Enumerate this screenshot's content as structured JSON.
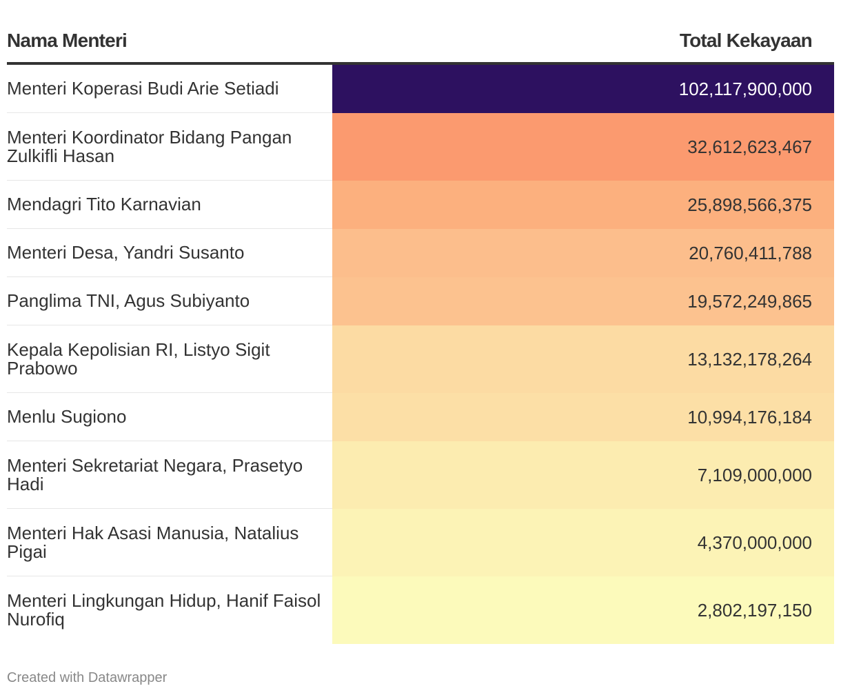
{
  "chart_data": {
    "type": "table",
    "columns": [
      "Nama Menteri",
      "Total Kekayaan"
    ],
    "rows": [
      {
        "name": "Menteri Koperasi Budi Arie Setiadi",
        "value": 102117900000,
        "display": "102,117,900,000",
        "color": "#2d1160",
        "text_color": "#ffffff"
      },
      {
        "name": "Menteri Koordinator Bidang Pangan Zulkifli Hasan",
        "value": 32612623467,
        "display": "32,612,623,467",
        "color": "#fb9a6f",
        "text_color": "#333333"
      },
      {
        "name": "Mendagri Tito Karnavian",
        "value": 25898566375,
        "display": "25,898,566,375",
        "color": "#fcb07e",
        "text_color": "#333333"
      },
      {
        "name": "Menteri Desa, Yandri Susanto",
        "value": 20760411788,
        "display": "20,760,411,788",
        "color": "#fcbe8c",
        "text_color": "#333333"
      },
      {
        "name": "Panglima TNI, Agus Subiyanto",
        "value": 19572249865,
        "display": "19,572,249,865",
        "color": "#fcc28f",
        "text_color": "#333333"
      },
      {
        "name": "Kepala Kepolisian RI, Listyo Sigit Prabowo",
        "value": 13132178264,
        "display": "13,132,178,264",
        "color": "#fcdba3",
        "text_color": "#333333"
      },
      {
        "name": "Menlu Sugiono",
        "value": 10994176184,
        "display": "10,994,176,184",
        "color": "#fcdfa6",
        "text_color": "#333333"
      },
      {
        "name": "Menteri Sekretariat Negara, Prasetyo Hadi",
        "value": 7109000000,
        "display": "7,109,000,000",
        "color": "#fcecb0",
        "text_color": "#333333"
      },
      {
        "name": "Menteri Hak Asasi Manusia, Natalius Pigai",
        "value": 4370000000,
        "display": "4,370,000,000",
        "color": "#fcf3b6",
        "text_color": "#333333"
      },
      {
        "name": "Menteri Lingkungan Hidup, Hanif Faisol Nurofiq",
        "value": 2802197150,
        "display": "2,802,197,150",
        "color": "#fcfabb",
        "text_color": "#333333"
      }
    ]
  },
  "footer": "Created with Datawrapper"
}
